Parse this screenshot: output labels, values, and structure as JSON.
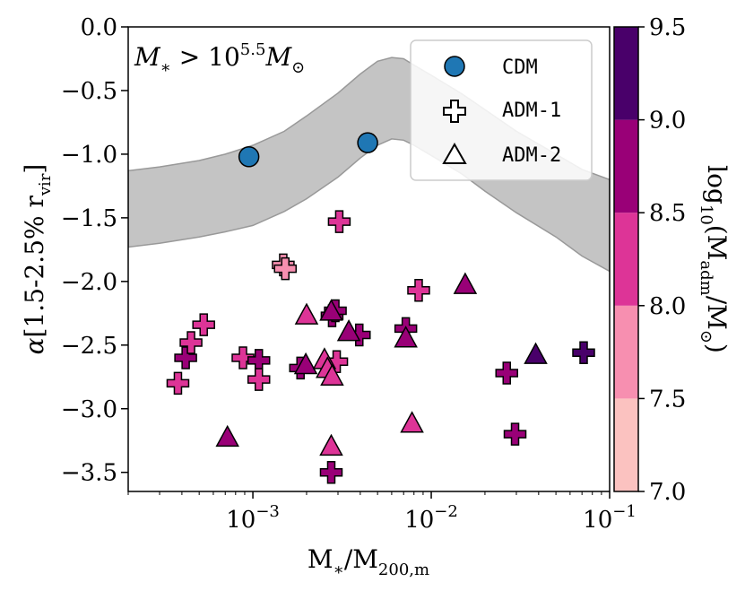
{
  "chart_data": {
    "type": "scatter",
    "title": "",
    "annotation": "M* > 10^5.5 M⊙",
    "xlabel": "M*/M200,m",
    "ylabel": "α[1.5-2.5% rvir]",
    "xscale": "log",
    "xlim": [
      0.0002,
      0.1
    ],
    "ylim": [
      -3.65,
      0.0
    ],
    "x_ticks": [
      {
        "value": 0.001,
        "label": "10^-3"
      },
      {
        "value": 0.01,
        "label": "10^-2"
      },
      {
        "value": 0.1,
        "label": "10^-1"
      }
    ],
    "y_ticks": [
      {
        "value": 0.0,
        "label": "0.0"
      },
      {
        "value": -0.5,
        "label": "−0.5"
      },
      {
        "value": -1.0,
        "label": "−1.0"
      },
      {
        "value": -1.5,
        "label": "−1.5"
      },
      {
        "value": -2.0,
        "label": "−2.0"
      },
      {
        "value": -2.5,
        "label": "−2.5"
      },
      {
        "value": -3.0,
        "label": "−3.0"
      },
      {
        "value": -3.5,
        "label": "−3.5"
      }
    ],
    "band": {
      "color": "#c4c4c4",
      "x": [
        0.0002,
        0.0003,
        0.0005,
        0.0007,
        0.001,
        0.0015,
        0.002,
        0.003,
        0.004,
        0.005,
        0.006,
        0.007,
        0.008,
        0.01,
        0.015,
        0.02,
        0.03,
        0.05,
        0.07,
        0.1
      ],
      "upper": [
        -1.13,
        -1.1,
        -1.05,
        -1.0,
        -0.93,
        -0.82,
        -0.7,
        -0.52,
        -0.37,
        -0.27,
        -0.24,
        -0.25,
        -0.3,
        -0.38,
        -0.53,
        -0.65,
        -0.82,
        -1.0,
        -1.12,
        -1.2
      ],
      "lower": [
        -1.73,
        -1.7,
        -1.65,
        -1.61,
        -1.56,
        -1.45,
        -1.35,
        -1.18,
        -1.03,
        -0.93,
        -0.88,
        -0.89,
        -0.93,
        -1.01,
        -1.16,
        -1.29,
        -1.46,
        -1.65,
        -1.8,
        -1.92
      ]
    },
    "series": [
      {
        "name": "CDM",
        "marker": "circle",
        "color": "#1f77b4",
        "points": [
          [
            0.00095,
            -1.02
          ],
          [
            0.0044,
            -0.91
          ]
        ]
      },
      {
        "name": "ADM-1",
        "marker": "plus",
        "points": [
          [
            0.00038,
            -2.8,
            8.3
          ],
          [
            0.00042,
            -2.6,
            8.7
          ],
          [
            0.00045,
            -2.48,
            8.3
          ],
          [
            0.00053,
            -2.34,
            8.3
          ],
          [
            0.00088,
            -2.6,
            8.3
          ],
          [
            0.00108,
            -2.62,
            8.7
          ],
          [
            0.00108,
            -2.77,
            8.3
          ],
          [
            0.00148,
            -1.87,
            7.8
          ],
          [
            0.00152,
            -1.9,
            7.8
          ],
          [
            0.00185,
            -2.68,
            8.7
          ],
          [
            0.00278,
            -2.27,
            8.7
          ],
          [
            0.0029,
            -2.23,
            8.7
          ],
          [
            0.00305,
            -1.53,
            8.3
          ],
          [
            0.00295,
            -2.63,
            8.3
          ],
          [
            0.00395,
            -2.42,
            8.7
          ],
          [
            0.00275,
            -3.5,
            8.7
          ],
          [
            0.0072,
            -2.37,
            8.7
          ],
          [
            0.0085,
            -2.07,
            8.3
          ],
          [
            0.0265,
            -2.72,
            8.7
          ],
          [
            0.0295,
            -3.2,
            8.7
          ],
          [
            0.0715,
            -2.56,
            9.2
          ]
        ]
      },
      {
        "name": "ADM-2",
        "marker": "triangle",
        "points": [
          [
            0.00072,
            -3.23,
            8.7
          ],
          [
            0.002,
            -2.27,
            8.3
          ],
          [
            0.00198,
            -2.66,
            8.7
          ],
          [
            0.00252,
            -2.62,
            8.3
          ],
          [
            0.00262,
            -2.69,
            8.3
          ],
          [
            0.00278,
            -2.75,
            8.3
          ],
          [
            0.00275,
            -2.24,
            8.7
          ],
          [
            0.00345,
            -2.4,
            8.7
          ],
          [
            0.00275,
            -3.3,
            8.3
          ],
          [
            0.0072,
            -2.45,
            8.7
          ],
          [
            0.0078,
            -3.12,
            8.3
          ],
          [
            0.0155,
            -2.03,
            8.7
          ],
          [
            0.0385,
            -2.58,
            9.2
          ]
        ]
      }
    ],
    "legend": {
      "location": "top-right",
      "entries": [
        {
          "label": "CDM",
          "marker": "circle"
        },
        {
          "label": "ADM-1",
          "marker": "plus"
        },
        {
          "label": "ADM-2",
          "marker": "triangle"
        }
      ]
    },
    "colorbar": {
      "label": "log10(Madm/M⊙)",
      "ticks": [
        "7.0",
        "7.5",
        "8.0",
        "8.5",
        "9.0",
        "9.5"
      ],
      "bins": [
        {
          "from": 7.0,
          "to": 7.5,
          "color": "#fbc2c0"
        },
        {
          "from": 7.5,
          "to": 8.0,
          "color": "#f78fb0"
        },
        {
          "from": 8.0,
          "to": 8.5,
          "color": "#dd3497"
        },
        {
          "from": 8.5,
          "to": 9.0,
          "color": "#990077"
        },
        {
          "from": 9.0,
          "to": 9.5,
          "color": "#49006a"
        }
      ]
    }
  }
}
